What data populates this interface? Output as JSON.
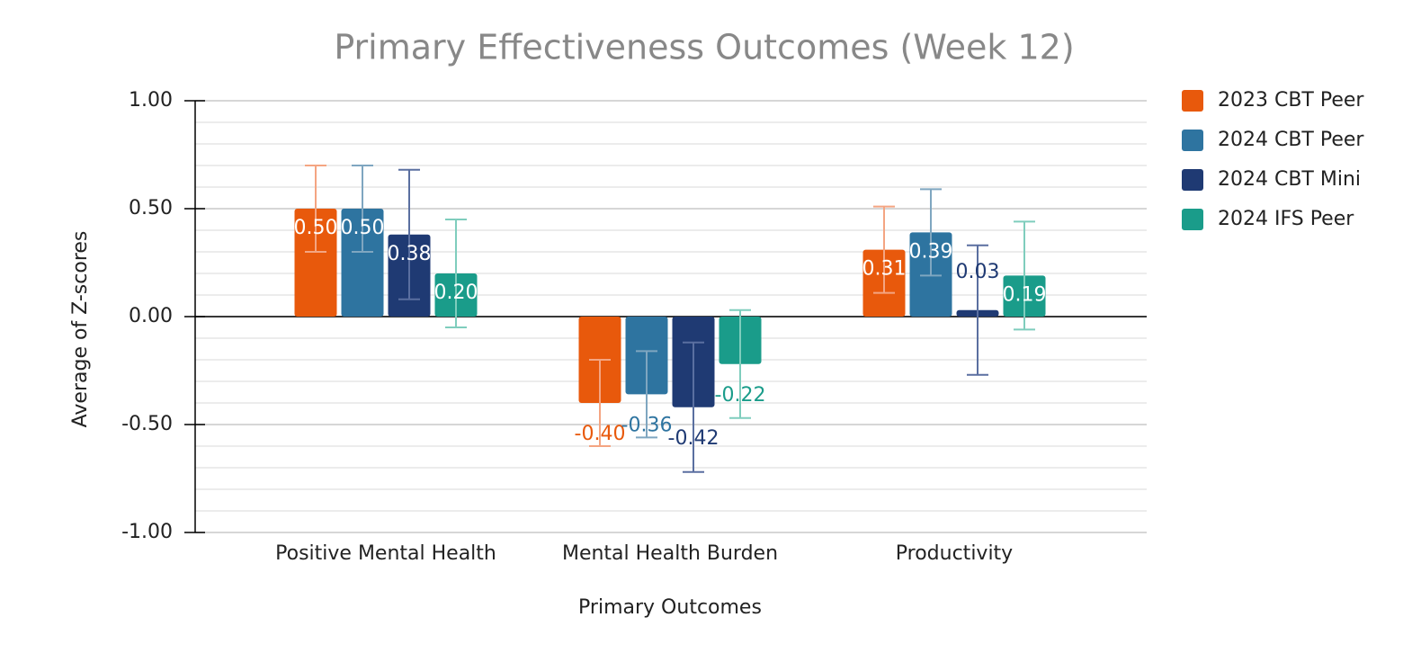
{
  "chart_data": {
    "type": "bar",
    "title": "Primary Effectiveness Outcomes (Week 12)",
    "x_label": "Primary Outcomes",
    "y_label": "Average of Z-scores",
    "categories": [
      "Positive Mental Health",
      "Mental Health Burden",
      "Productivity"
    ],
    "series": [
      {
        "name": "2023 CBT Peer",
        "color": "#e8590c",
        "error_color": "#f4a582",
        "values": [
          0.5,
          -0.4,
          0.31
        ],
        "value_labels": [
          "0.50",
          "-0.40",
          "0.31"
        ],
        "errors": [
          0.2,
          0.2,
          0.2
        ]
      },
      {
        "name": "2024 CBT Peer",
        "color": "#2e74a0",
        "error_color": "#7fa6c0",
        "values": [
          0.5,
          -0.36,
          0.39
        ],
        "value_labels": [
          "0.50",
          "-0.36",
          "0.39"
        ],
        "errors": [
          0.2,
          0.2,
          0.2
        ]
      },
      {
        "name": "2024 CBT Mini",
        "color": "#1f3a73",
        "error_color": "#5a6fa0",
        "values": [
          0.38,
          -0.42,
          0.03
        ],
        "value_labels": [
          "0.38",
          "-0.42",
          "0.03"
        ],
        "errors": [
          0.3,
          0.3,
          0.3
        ]
      },
      {
        "name": "2024 IFS Peer",
        "color": "#1a9c8a",
        "error_color": "#7fcdbd",
        "values": [
          0.2,
          -0.22,
          0.19
        ],
        "value_labels": [
          "0.20",
          "-0.22",
          "0.19"
        ],
        "errors": [
          0.25,
          0.25,
          0.25
        ]
      }
    ],
    "ylim": [
      -1,
      1
    ],
    "yticks": [
      {
        "value": -1,
        "label": "-1.00"
      },
      {
        "value": -0.5,
        "label": "-0.50"
      },
      {
        "value": 0,
        "label": "0.00"
      },
      {
        "value": 0.5,
        "label": "0.50"
      },
      {
        "value": 1,
        "label": "1.00"
      }
    ],
    "y_minor_ticks": [
      -0.9,
      -0.8,
      -0.7,
      -0.6,
      -0.4,
      -0.3,
      -0.2,
      -0.1,
      0.1,
      0.2,
      0.3,
      0.4,
      0.6,
      0.7,
      0.8,
      0.9
    ],
    "grid": true,
    "legend": "right"
  }
}
